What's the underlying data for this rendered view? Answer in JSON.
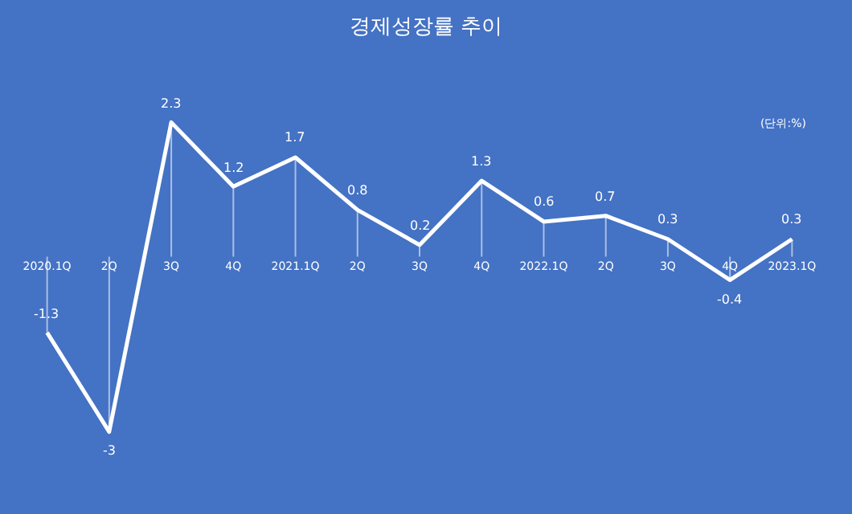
{
  "chart_data": {
    "type": "line",
    "title": "경제성장률 추이",
    "annotations": [
      "(단위:%)"
    ],
    "categories": [
      "2020.1Q",
      "2Q",
      "3Q",
      "4Q",
      "2021.1Q",
      "2Q",
      "3Q",
      "4Q",
      "2022.1Q",
      "2Q",
      "3Q",
      "4Q",
      "2023.1Q"
    ],
    "series": [
      {
        "color": "#ffffff",
        "values": [
          -1.3,
          -3,
          2.3,
          1.2,
          1.7,
          0.8,
          0.2,
          1.3,
          0.6,
          0.7,
          0.3,
          -0.4,
          0.3
        ]
      }
    ],
    "data_labels": true,
    "tick_labels": "x",
    "grid": false,
    "marker": "none",
    "line_style": "solid"
  }
}
